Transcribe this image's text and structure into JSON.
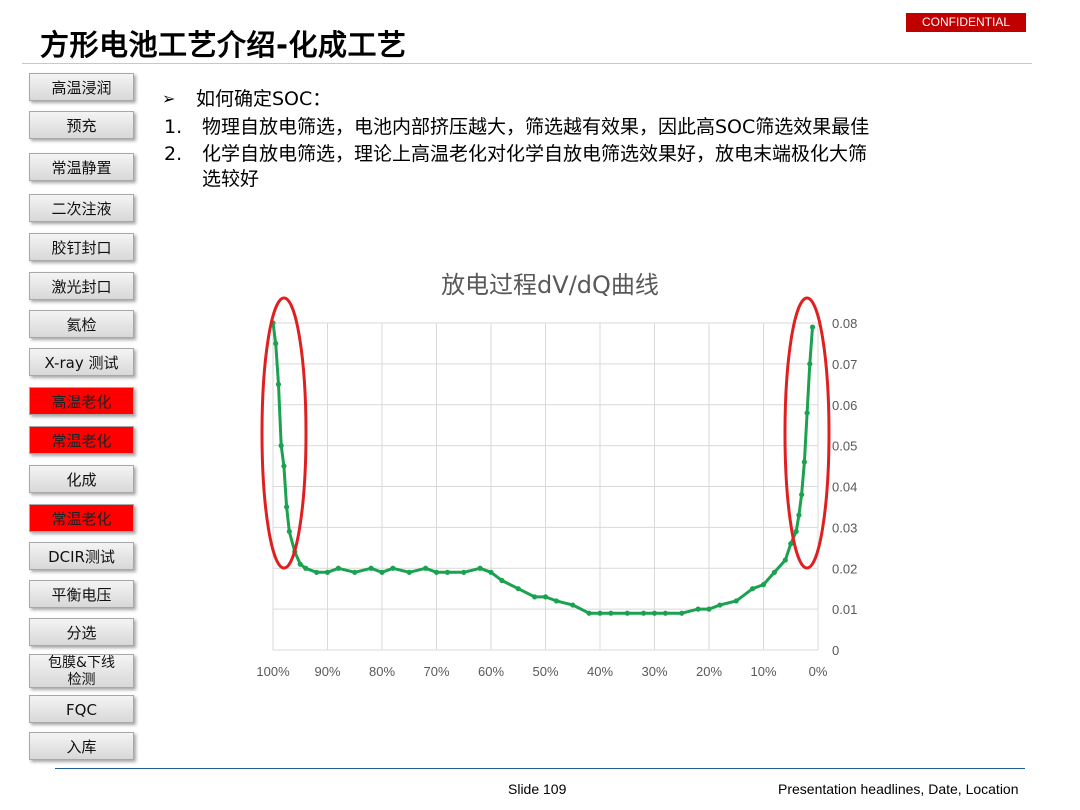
{
  "header": {
    "title": "方形电池工艺介绍-化成工艺",
    "confidential": "CONFIDENTIAL"
  },
  "sidebar": {
    "items": [
      {
        "label": "高温浸润",
        "highlight": false
      },
      {
        "label": "预充",
        "highlight": false
      },
      {
        "label": "常温静置",
        "highlight": false
      },
      {
        "label": "二次注液",
        "highlight": false
      },
      {
        "label": "胶钉封口",
        "highlight": false
      },
      {
        "label": "激光封口",
        "highlight": false
      },
      {
        "label": "氦检",
        "highlight": false
      },
      {
        "label": "X-ray 测试",
        "highlight": false
      },
      {
        "label": "高温老化",
        "highlight": true
      },
      {
        "label": "常温老化",
        "highlight": true
      },
      {
        "label": "化成",
        "highlight": false
      },
      {
        "label": "常温老化",
        "highlight": true
      },
      {
        "label": "DCIR测试",
        "highlight": false
      },
      {
        "label": "平衡电压",
        "highlight": false
      },
      {
        "label": "分选",
        "highlight": false
      },
      {
        "label": "包膜&下线检测",
        "highlight": false
      },
      {
        "label": "FQC",
        "highlight": false
      },
      {
        "label": "入库",
        "highlight": false
      }
    ],
    "highlight_color": "#ff0000"
  },
  "content": {
    "heading": "如何确定SOC：",
    "points": [
      {
        "num": "1.",
        "text": "物理自放电筛选，电池内部挤压越大，筛选越有效果，因此高SOC筛选效果最佳"
      },
      {
        "num": "2.",
        "text_line1": "化学自放电筛选，理论上高温老化对化学自放电筛选效果好，放电末端极化大筛",
        "text_line2": "选较好"
      }
    ]
  },
  "chart_data": {
    "type": "line",
    "title": "放电过程dV/dQ曲线",
    "x_ticks": [
      "100%",
      "90%",
      "80%",
      "70%",
      "60%",
      "50%",
      "40%",
      "30%",
      "20%",
      "10%",
      "0%"
    ],
    "y_ticks": [
      "0",
      "0.01",
      "0.02",
      "0.03",
      "0.04",
      "0.05",
      "0.06",
      "0.07",
      "0.08"
    ],
    "xlim": [
      100,
      0
    ],
    "ylim": [
      0,
      0.08
    ],
    "x_values": [
      100,
      99.5,
      99,
      98.5,
      98,
      97.5,
      97,
      96,
      95,
      94,
      92,
      90,
      88,
      85,
      82,
      80,
      78,
      75,
      72,
      70,
      68,
      65,
      62,
      60,
      58,
      55,
      52,
      50,
      48,
      45,
      42,
      40,
      38,
      35,
      32,
      30,
      28,
      25,
      22,
      20,
      18,
      15,
      12,
      10,
      8,
      6,
      5,
      4,
      3.5,
      3,
      2.5,
      2,
      1.5,
      1
    ],
    "y_values": [
      0.08,
      0.075,
      0.065,
      0.05,
      0.045,
      0.035,
      0.029,
      0.024,
      0.021,
      0.02,
      0.019,
      0.019,
      0.02,
      0.019,
      0.02,
      0.019,
      0.02,
      0.019,
      0.02,
      0.019,
      0.019,
      0.019,
      0.02,
      0.019,
      0.017,
      0.015,
      0.013,
      0.013,
      0.012,
      0.011,
      0.009,
      0.009,
      0.009,
      0.009,
      0.009,
      0.009,
      0.009,
      0.009,
      0.01,
      0.01,
      0.011,
      0.012,
      0.015,
      0.016,
      0.019,
      0.022,
      0.026,
      0.029,
      0.033,
      0.038,
      0.046,
      0.058,
      0.07,
      0.079
    ],
    "series_color": "#1aa251",
    "grid": true,
    "highlight_ellipse_color": "#e02020"
  },
  "footer": {
    "slide": "Slide 109",
    "location": "Presentation headlines, Date, Location"
  }
}
